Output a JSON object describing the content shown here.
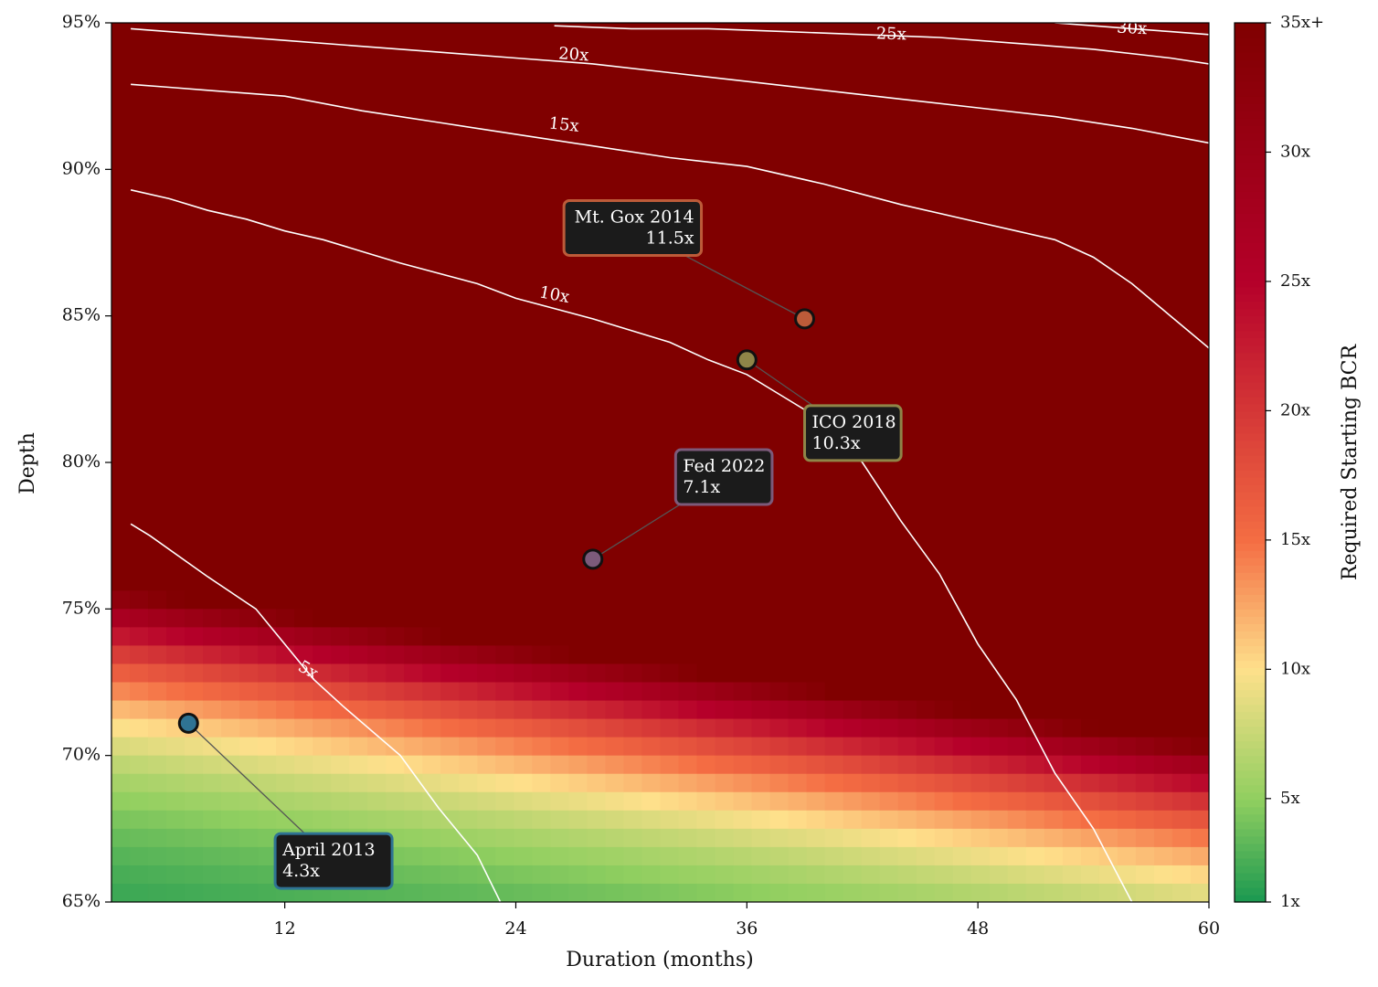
{
  "chart_data": {
    "type": "heatmap",
    "title": "",
    "xlabel": "Duration (months)",
    "ylabel": "Depth",
    "xlim": [
      3,
      60
    ],
    "ylim": [
      65,
      95
    ],
    "x_ticks": [
      12,
      24,
      36,
      48,
      60
    ],
    "x_tick_labels": [
      "12",
      "24",
      "36",
      "48",
      "60"
    ],
    "y_ticks": [
      65,
      70,
      75,
      80,
      85,
      90,
      95
    ],
    "y_tick_labels": [
      "65%",
      "70%",
      "75%",
      "80%",
      "85%",
      "90%",
      "95%"
    ],
    "grid": false,
    "colormap": "RdYlGn_r",
    "colorbar": {
      "label": "Required Starting BCR",
      "range": [
        1,
        35
      ],
      "ticks": [
        1,
        5,
        10,
        15,
        20,
        25,
        30,
        35
      ],
      "tick_labels": [
        "1x",
        "5x",
        "10x",
        "15x",
        "20x",
        "25x",
        "30x",
        "35x+"
      ],
      "stops": [
        {
          "value": 1,
          "color": "#1a9850"
        },
        {
          "value": 5,
          "color": "#91cf60"
        },
        {
          "value": 10,
          "color": "#fee08b"
        },
        {
          "value": 15,
          "color": "#f46d43"
        },
        {
          "value": 25,
          "color": "#b5002a"
        },
        {
          "value": 35,
          "color": "#800000"
        }
      ]
    },
    "contours": [
      {
        "level": 5,
        "label": "5x",
        "label_at": [
          13.2,
          72.9
        ],
        "label_angle": 30,
        "points": [
          [
            4,
            77.9
          ],
          [
            5,
            77.5
          ],
          [
            8,
            76.1
          ],
          [
            10.5,
            75
          ],
          [
            12,
            73.8
          ],
          [
            13.5,
            72.6
          ],
          [
            15,
            71.7
          ],
          [
            18,
            70
          ],
          [
            20,
            68.2
          ],
          [
            22,
            66.6
          ],
          [
            23.2,
            65
          ]
        ]
      },
      {
        "level": 10,
        "label": "10x",
        "label_at": [
          26,
          85.7
        ],
        "label_angle": 11,
        "points": [
          [
            4,
            89.3
          ],
          [
            6,
            89
          ],
          [
            8,
            88.6
          ],
          [
            10,
            88.3
          ],
          [
            12,
            87.9
          ],
          [
            14,
            87.6
          ],
          [
            16,
            87.2
          ],
          [
            18,
            86.8
          ],
          [
            22,
            86.1
          ],
          [
            24,
            85.6
          ],
          [
            28,
            84.9
          ],
          [
            32,
            84.1
          ],
          [
            34,
            83.5
          ],
          [
            36,
            83
          ],
          [
            38,
            82.2
          ],
          [
            40,
            81.4
          ],
          [
            42,
            80
          ],
          [
            44,
            78
          ],
          [
            46,
            76.2
          ],
          [
            48,
            73.8
          ],
          [
            50,
            71.9
          ],
          [
            52,
            69.4
          ],
          [
            54,
            67.5
          ],
          [
            56,
            65
          ]
        ]
      },
      {
        "level": 15,
        "label": "15x",
        "label_at": [
          26.5,
          91.5
        ],
        "label_angle": 6,
        "points": [
          [
            4,
            92.9
          ],
          [
            6,
            92.8
          ],
          [
            8,
            92.7
          ],
          [
            12,
            92.5
          ],
          [
            16,
            92
          ],
          [
            20,
            91.6
          ],
          [
            24,
            91.2
          ],
          [
            28,
            90.8
          ],
          [
            32,
            90.4
          ],
          [
            36,
            90.1
          ],
          [
            40,
            89.5
          ],
          [
            44,
            88.8
          ],
          [
            48,
            88.2
          ],
          [
            50,
            87.9
          ],
          [
            52,
            87.6
          ],
          [
            54,
            87
          ],
          [
            56,
            86.1
          ],
          [
            58,
            85
          ],
          [
            60,
            83.9
          ]
        ]
      },
      {
        "level": 20,
        "label": "20x",
        "label_at": [
          27,
          93.9
        ],
        "label_angle": 4,
        "points": [
          [
            4,
            94.8
          ],
          [
            8,
            94.6
          ],
          [
            12,
            94.4
          ],
          [
            16,
            94.2
          ],
          [
            20,
            94
          ],
          [
            24,
            93.8
          ],
          [
            28,
            93.6
          ],
          [
            32,
            93.3
          ],
          [
            36,
            93
          ],
          [
            40,
            92.7
          ],
          [
            44,
            92.4
          ],
          [
            48,
            92.1
          ],
          [
            52,
            91.8
          ],
          [
            56,
            91.4
          ],
          [
            60,
            90.9
          ]
        ]
      },
      {
        "level": 25,
        "label": "25x",
        "label_at": [
          43.5,
          94.6
        ],
        "label_angle": 2,
        "points": [
          [
            26,
            94.9
          ],
          [
            30,
            94.8
          ],
          [
            34,
            94.8
          ],
          [
            38,
            94.7
          ],
          [
            42,
            94.6
          ],
          [
            46,
            94.5
          ],
          [
            50,
            94.3
          ],
          [
            54,
            94.1
          ],
          [
            58,
            93.8
          ],
          [
            60,
            93.6
          ]
        ]
      },
      {
        "level": 30,
        "label": "30x",
        "label_at": [
          56,
          94.8
        ],
        "label_angle": 3,
        "points": [
          [
            52,
            95
          ],
          [
            54,
            94.9
          ],
          [
            56,
            94.8
          ],
          [
            58,
            94.7
          ],
          [
            60,
            94.6
          ]
        ]
      }
    ],
    "events": [
      {
        "name": "April 2013",
        "value_label": "4.3x",
        "duration": 7,
        "depth": 71.1,
        "color": "#2f7393",
        "text_align": "left",
        "label_anchor": [
          11.5,
          66.4
        ]
      },
      {
        "name": "Fed 2022",
        "value_label": "7.1x",
        "duration": 28,
        "depth": 76.7,
        "color": "#7c5a7a",
        "text_align": "left",
        "label_anchor": [
          32.3,
          79.5
        ]
      },
      {
        "name": "ICO 2018",
        "value_label": "10.3x",
        "duration": 36,
        "depth": 83.5,
        "color": "#8f8548",
        "text_align": "left",
        "label_anchor": [
          39,
          81
        ]
      },
      {
        "name": "Mt. Gox 2014",
        "value_label": "11.5x",
        "duration": 39,
        "depth": 84.9,
        "color": "#bd5b39",
        "text_align": "right",
        "label_anchor": [
          26.5,
          88
        ]
      }
    ]
  }
}
